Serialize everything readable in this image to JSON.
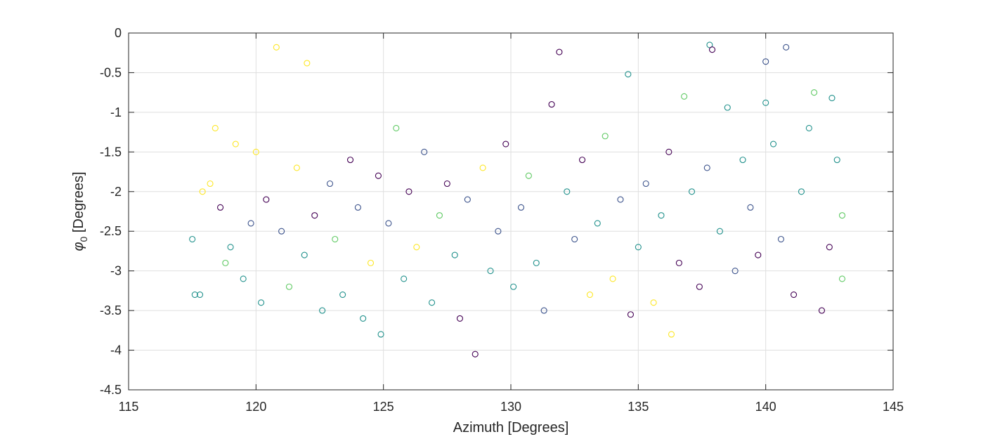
{
  "chart_data": {
    "type": "scatter",
    "title": "",
    "xlabel": "Azimuth [Degrees]",
    "ylabel_symbol": "φ",
    "ylabel_subscript": "0",
    "ylabel_unit": " [Degrees]",
    "xlim": [
      115,
      145
    ],
    "ylim": [
      -4.5,
      0
    ],
    "xticks": [
      115,
      120,
      125,
      130,
      135,
      140,
      145
    ],
    "yticks": [
      0,
      -0.5,
      -1,
      -1.5,
      -2,
      -2.5,
      -3,
      -3.5,
      -4,
      -4.5
    ],
    "xtick_labels": [
      "115",
      "120",
      "125",
      "130",
      "135",
      "140",
      "145"
    ],
    "ytick_labels": [
      "0",
      "-0.5",
      "-1",
      "-1.5",
      "-2",
      "-2.5",
      "-3",
      "-3.5",
      "-4",
      "-4.5"
    ],
    "grid": true,
    "marker": "circle-open",
    "colormap": [
      "#440154",
      "#3b528b",
      "#21918c",
      "#5ec962",
      "#fde725"
    ],
    "points": [
      [
        117.5,
        -2.6,
        2
      ],
      [
        117.8,
        -3.3,
        2
      ],
      [
        117.9,
        -2.0,
        4
      ],
      [
        118.2,
        -1.9,
        4
      ],
      [
        118.4,
        -1.2,
        4
      ],
      [
        118.6,
        -2.2,
        0
      ],
      [
        118.8,
        -2.9,
        3
      ],
      [
        119.0,
        -2.7,
        2
      ],
      [
        119.2,
        -1.4,
        4
      ],
      [
        119.5,
        -3.1,
        2
      ],
      [
        119.8,
        -2.4,
        1
      ],
      [
        120.0,
        -1.5,
        4
      ],
      [
        120.2,
        -3.4,
        2
      ],
      [
        120.4,
        -2.1,
        0
      ],
      [
        120.8,
        -0.18,
        4
      ],
      [
        121.0,
        -2.5,
        1
      ],
      [
        121.3,
        -3.2,
        3
      ],
      [
        121.6,
        -1.7,
        4
      ],
      [
        121.9,
        -2.8,
        2
      ],
      [
        122.0,
        -0.38,
        4
      ],
      [
        122.3,
        -2.3,
        0
      ],
      [
        122.6,
        -3.5,
        2
      ],
      [
        122.9,
        -1.9,
        1
      ],
      [
        123.1,
        -2.6,
        3
      ],
      [
        123.4,
        -3.3,
        2
      ],
      [
        123.7,
        -1.6,
        0
      ],
      [
        124.0,
        -2.2,
        1
      ],
      [
        124.2,
        -3.6,
        2
      ],
      [
        124.5,
        -2.9,
        4
      ],
      [
        124.8,
        -1.8,
        0
      ],
      [
        124.9,
        -3.8,
        2
      ],
      [
        125.2,
        -2.4,
        1
      ],
      [
        125.5,
        -1.2,
        3
      ],
      [
        125.8,
        -3.1,
        2
      ],
      [
        126.0,
        -2.0,
        0
      ],
      [
        126.3,
        -2.7,
        4
      ],
      [
        126.6,
        -1.5,
        1
      ],
      [
        126.9,
        -3.4,
        2
      ],
      [
        127.2,
        -2.3,
        3
      ],
      [
        127.5,
        -1.9,
        0
      ],
      [
        127.8,
        -2.8,
        2
      ],
      [
        128.0,
        -3.6,
        0
      ],
      [
        128.3,
        -2.1,
        1
      ],
      [
        128.6,
        -4.05,
        0
      ],
      [
        128.9,
        -1.7,
        4
      ],
      [
        129.2,
        -3.0,
        2
      ],
      [
        129.5,
        -2.5,
        1
      ],
      [
        129.8,
        -1.4,
        0
      ],
      [
        130.1,
        -3.2,
        2
      ],
      [
        130.4,
        -2.2,
        1
      ],
      [
        130.7,
        -1.8,
        3
      ],
      [
        131.0,
        -2.9,
        2
      ],
      [
        131.3,
        -3.5,
        1
      ],
      [
        131.6,
        -0.9,
        0
      ],
      [
        131.9,
        -0.24,
        0
      ],
      [
        132.2,
        -2.0,
        2
      ],
      [
        132.5,
        -2.6,
        1
      ],
      [
        132.8,
        -1.6,
        0
      ],
      [
        133.1,
        -3.3,
        4
      ],
      [
        133.4,
        -2.4,
        2
      ],
      [
        133.7,
        -1.3,
        3
      ],
      [
        134.0,
        -3.1,
        4
      ],
      [
        134.3,
        -2.1,
        1
      ],
      [
        134.6,
        -0.52,
        2
      ],
      [
        134.7,
        -3.55,
        0
      ],
      [
        135.0,
        -2.7,
        2
      ],
      [
        135.3,
        -1.9,
        1
      ],
      [
        135.6,
        -3.4,
        4
      ],
      [
        135.9,
        -2.3,
        2
      ],
      [
        136.2,
        -1.5,
        0
      ],
      [
        136.3,
        -3.8,
        4
      ],
      [
        136.6,
        -2.9,
        0
      ],
      [
        136.8,
        -0.8,
        3
      ],
      [
        137.1,
        -2.0,
        2
      ],
      [
        137.4,
        -3.2,
        0
      ],
      [
        137.7,
        -1.7,
        1
      ],
      [
        137.8,
        -0.15,
        2
      ],
      [
        137.9,
        -0.21,
        0
      ],
      [
        138.2,
        -2.5,
        2
      ],
      [
        138.5,
        -0.94,
        2
      ],
      [
        138.8,
        -3.0,
        1
      ],
      [
        139.1,
        -1.6,
        2
      ],
      [
        139.4,
        -2.2,
        1
      ],
      [
        139.7,
        -2.8,
        0
      ],
      [
        140.0,
        -0.36,
        1
      ],
      [
        140.0,
        -0.88,
        2
      ],
      [
        140.3,
        -1.4,
        2
      ],
      [
        140.6,
        -2.6,
        1
      ],
      [
        140.8,
        -0.18,
        1
      ],
      [
        141.1,
        -3.3,
        0
      ],
      [
        141.4,
        -2.0,
        2
      ],
      [
        141.7,
        -1.2,
        2
      ],
      [
        141.9,
        -0.75,
        3
      ],
      [
        142.2,
        -3.5,
        0
      ],
      [
        142.5,
        -2.7,
        0
      ],
      [
        142.6,
        -0.82,
        2
      ],
      [
        142.8,
        -1.6,
        2
      ],
      [
        143.0,
        -2.3,
        3
      ],
      [
        143.0,
        -3.1,
        3
      ],
      [
        117.6,
        -3.3,
        2
      ]
    ]
  }
}
